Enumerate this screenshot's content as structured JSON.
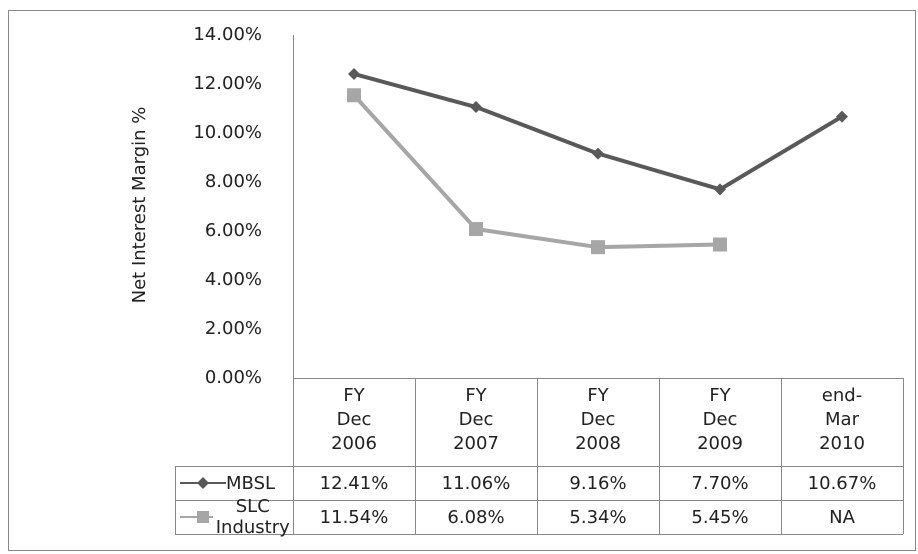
{
  "chart_data": {
    "type": "line",
    "y_label": "Net Interest Margin %",
    "categories": [
      "FY Dec 2006",
      "FY Dec 2007",
      "FY Dec 2008",
      "FY Dec 2009",
      "end-Mar 2010"
    ],
    "series": [
      {
        "name": "MBSL",
        "color": "#595959",
        "marker": "diamond",
        "values": [
          12.41,
          11.06,
          9.16,
          7.7,
          10.67
        ],
        "value_labels": [
          "12.41%",
          "11.06%",
          "9.16%",
          "7.70%",
          "10.67%"
        ]
      },
      {
        "name": "SLC Industry",
        "color": "#a6a6a6",
        "marker": "square",
        "values": [
          11.54,
          6.08,
          5.34,
          5.45,
          null
        ],
        "value_labels": [
          "11.54%",
          "6.08%",
          "5.34%",
          "5.45%",
          "NA"
        ]
      }
    ],
    "ylim": [
      0,
      14
    ],
    "yticks": [
      {
        "value": 0,
        "label": "0.00%"
      },
      {
        "value": 2,
        "label": "2.00%"
      },
      {
        "value": 4,
        "label": "4.00%"
      },
      {
        "value": 6,
        "label": "6.00%"
      },
      {
        "value": 8,
        "label": "8.00%"
      },
      {
        "value": 10,
        "label": "10.00%"
      },
      {
        "value": 12,
        "label": "12.00%"
      },
      {
        "value": 14,
        "label": "14.00%"
      }
    ],
    "grid": false
  }
}
